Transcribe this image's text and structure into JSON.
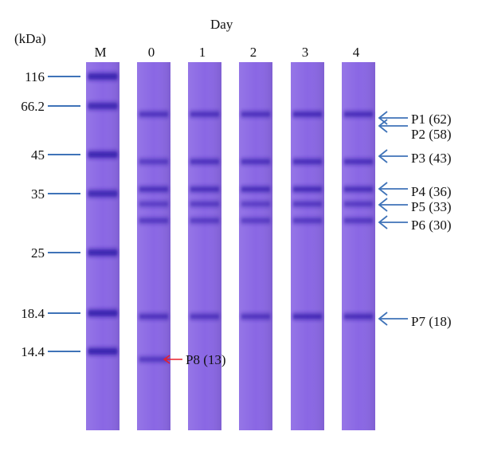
{
  "figure": {
    "axis_title": "Day",
    "unit_label": "(kDa)",
    "lanes": [
      {
        "label": "M",
        "bands": [
          {
            "mw": 116,
            "i": 0.95
          },
          {
            "mw": 66.2,
            "i": 0.85
          },
          {
            "mw": 45,
            "i": 0.95
          },
          {
            "mw": 35,
            "i": 0.85
          },
          {
            "mw": 25,
            "i": 0.95
          },
          {
            "mw": 18.4,
            "i": 1.0
          },
          {
            "mw": 14.4,
            "i": 1.0
          }
        ]
      },
      {
        "label": "0",
        "bands": [
          {
            "mw": 62,
            "i": 0.7
          },
          {
            "mw": 43,
            "i": 0.55
          },
          {
            "mw": 36,
            "i": 0.8
          },
          {
            "mw": 33,
            "i": 0.45
          },
          {
            "mw": 30,
            "i": 0.6
          },
          {
            "mw": 18,
            "i": 0.75
          },
          {
            "mw": 13,
            "i": 0.6
          }
        ]
      },
      {
        "label": "1",
        "bands": [
          {
            "mw": 62,
            "i": 0.75
          },
          {
            "mw": 43,
            "i": 0.75
          },
          {
            "mw": 36,
            "i": 0.8
          },
          {
            "mw": 33,
            "i": 0.55
          },
          {
            "mw": 30,
            "i": 0.55
          },
          {
            "mw": 18,
            "i": 0.7
          }
        ]
      },
      {
        "label": "2",
        "bands": [
          {
            "mw": 62,
            "i": 0.75
          },
          {
            "mw": 43,
            "i": 0.75
          },
          {
            "mw": 36,
            "i": 0.85
          },
          {
            "mw": 33,
            "i": 0.45
          },
          {
            "mw": 30,
            "i": 0.5
          },
          {
            "mw": 18,
            "i": 0.7
          }
        ]
      },
      {
        "label": "3",
        "bands": [
          {
            "mw": 62,
            "i": 0.9
          },
          {
            "mw": 43,
            "i": 0.85
          },
          {
            "mw": 36,
            "i": 0.9
          },
          {
            "mw": 33,
            "i": 0.6
          },
          {
            "mw": 30,
            "i": 0.6
          },
          {
            "mw": 18,
            "i": 0.95
          }
        ]
      },
      {
        "label": "4",
        "bands": [
          {
            "mw": 62,
            "i": 0.85
          },
          {
            "mw": 43,
            "i": 0.8
          },
          {
            "mw": 36,
            "i": 0.8
          },
          {
            "mw": 33,
            "i": 0.55
          },
          {
            "mw": 30,
            "i": 0.6
          },
          {
            "mw": 18,
            "i": 0.85
          }
        ]
      }
    ],
    "markers": [
      {
        "label": "116",
        "kda": 116
      },
      {
        "label": "66.2",
        "kda": 66.2
      },
      {
        "label": "45",
        "kda": 45
      },
      {
        "label": "35",
        "kda": 35
      },
      {
        "label": "25",
        "kda": 25
      },
      {
        "label": "18.4",
        "kda": 18.4
      },
      {
        "label": "14.4",
        "kda": 14.4
      }
    ],
    "proteins": [
      {
        "label": "P1 (62)",
        "kda": 62
      },
      {
        "label": "P2 (58)",
        "kda": 58
      },
      {
        "label": "P3 (43)",
        "kda": 43
      },
      {
        "label": "P4 (36)",
        "kda": 36
      },
      {
        "label": "P5 (33)",
        "kda": 33
      },
      {
        "label": "P6 (30)",
        "kda": 30
      },
      {
        "label": "P7 (18)",
        "kda": 18
      }
    ],
    "highlight": {
      "label": "P8 (13)",
      "kda": 13,
      "color": "#e8202a"
    },
    "colors": {
      "gel": "#8a67e4",
      "band": "#2a19a6",
      "arrow": "#3f73b8",
      "marker_line": "#3f73b8"
    }
  }
}
